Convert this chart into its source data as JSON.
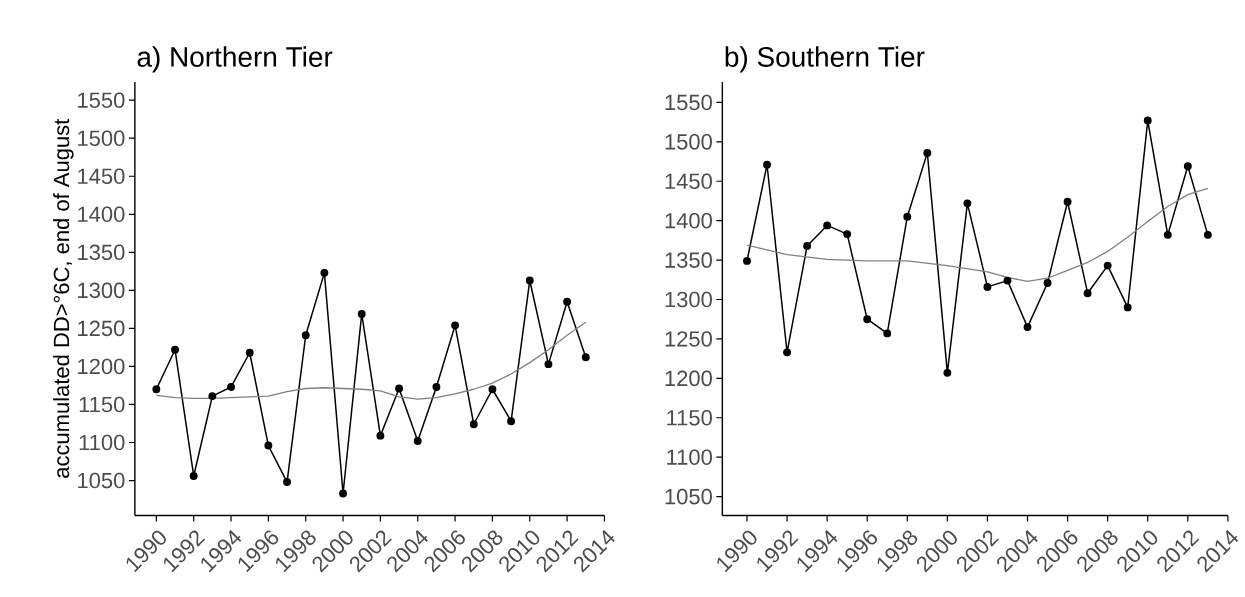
{
  "chart_data": [
    {
      "type": "line",
      "title": "a) Northern Tier",
      "ylabel": "accumulated DD>°6C, end of August",
      "x": [
        1990,
        1991,
        1992,
        1993,
        1994,
        1995,
        1996,
        1997,
        1998,
        1999,
        2000,
        2001,
        2002,
        2003,
        2004,
        2005,
        2006,
        2007,
        2008,
        2009,
        2010,
        2011,
        2012,
        2013
      ],
      "xlim": [
        1988.85,
        2014
      ],
      "ylim": [
        1004,
        1574
      ],
      "xticks": [
        1990,
        1992,
        1994,
        1996,
        1998,
        2000,
        2002,
        2004,
        2006,
        2008,
        2010,
        2012,
        2014
      ],
      "yticks": [
        1050,
        1100,
        1150,
        1200,
        1250,
        1300,
        1350,
        1400,
        1450,
        1500,
        1550
      ],
      "series": [
        {
          "color": "#000000",
          "marker": "circle",
          "values": [
            1170,
            1222,
            1056,
            1161,
            1173,
            1218,
            1096,
            1048,
            1241,
            1323,
            1033,
            1269,
            1109,
            1171,
            1102,
            1173,
            1254,
            1124,
            1170,
            1128,
            1313,
            1203,
            1285,
            1212
          ]
        },
        {
          "color": "#808080",
          "marker": "none",
          "values": [
            1162,
            1159,
            1158,
            1158,
            1159,
            1160,
            1161,
            1167,
            1171,
            1172,
            1171,
            1170,
            1168,
            1160,
            1157,
            1159,
            1164,
            1170,
            1178,
            1190,
            1205,
            1222,
            1241,
            1258
          ]
        }
      ]
    },
    {
      "type": "line",
      "title": "b) Southern Tier",
      "x": [
        1990,
        1991,
        1992,
        1993,
        1994,
        1995,
        1996,
        1997,
        1998,
        1999,
        2000,
        2001,
        2002,
        2003,
        2004,
        2005,
        2006,
        2007,
        2008,
        2009,
        2010,
        2011,
        2012,
        2013
      ],
      "xlim": [
        1988.77,
        2014
      ],
      "ylim": [
        1026,
        1576
      ],
      "xticks": [
        1990,
        1992,
        1994,
        1996,
        1998,
        2000,
        2002,
        2004,
        2006,
        2008,
        2010,
        2012,
        2014
      ],
      "yticks": [
        1050,
        1100,
        1150,
        1200,
        1250,
        1300,
        1350,
        1400,
        1450,
        1500,
        1550
      ],
      "series": [
        {
          "color": "#000000",
          "marker": "circle",
          "values": [
            1349,
            1471,
            1233,
            1368,
            1394,
            1383,
            1275,
            1257,
            1405,
            1486,
            1207,
            1422,
            1316,
            1324,
            1265,
            1321,
            1424,
            1308,
            1343,
            1290,
            1527,
            1382,
            1469,
            1382
          ]
        },
        {
          "color": "#808080",
          "marker": "none",
          "values": [
            1369,
            1363,
            1357,
            1354,
            1351,
            1350,
            1349,
            1349,
            1349,
            1346,
            1343,
            1339,
            1335,
            1328,
            1323,
            1327,
            1337,
            1347,
            1361,
            1379,
            1399,
            1418,
            1433,
            1441
          ]
        }
      ]
    }
  ]
}
